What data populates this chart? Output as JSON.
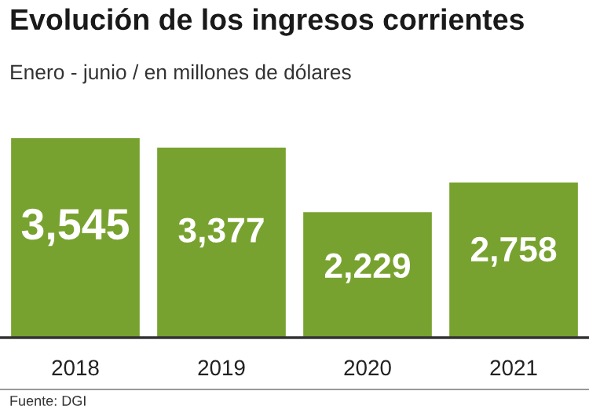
{
  "chart_data": {
    "type": "bar",
    "title": "Evolución de los ingresos corrientes",
    "subtitle": "Enero - junio / en millones de dólares",
    "categories": [
      "2018",
      "2019",
      "2020",
      "2021"
    ],
    "values": [
      3545,
      3377,
      2229,
      2758
    ],
    "value_labels": [
      "3,545",
      "3,377",
      "2,229",
      "2,758"
    ],
    "color": "#78a22f",
    "grid": false,
    "legend": false,
    "annotations": [
      "Fuente: DGI"
    ]
  }
}
